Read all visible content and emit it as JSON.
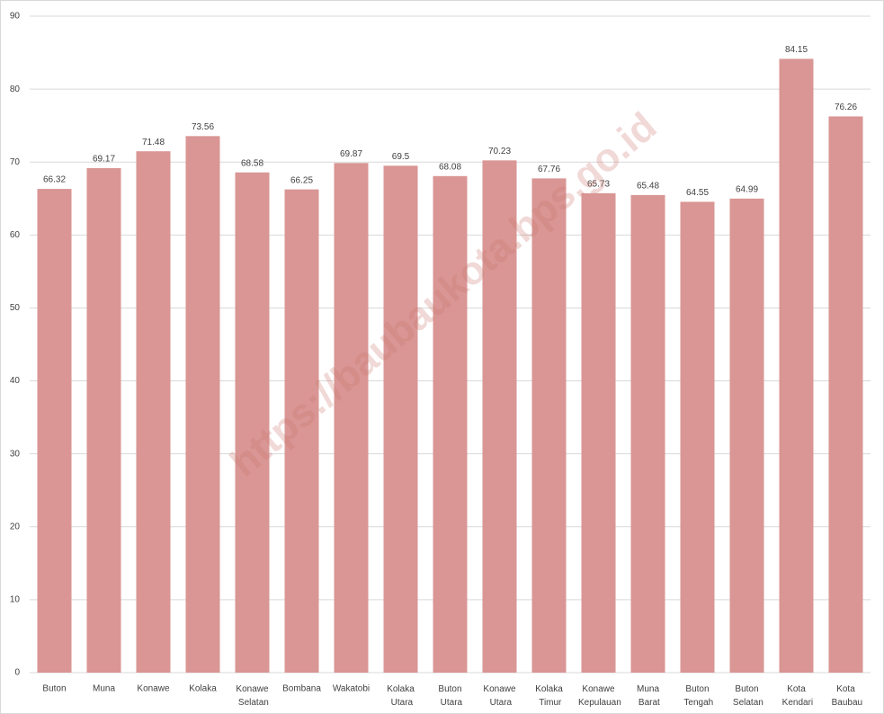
{
  "chart_data": {
    "type": "bar",
    "categories": [
      "Buton",
      "Muna",
      "Konawe",
      "Kolaka",
      "Konawe Selatan",
      "Bombana",
      "Wakatobi",
      "Kolaka Utara",
      "Buton Utara",
      "Konawe Utara",
      "Kolaka Timur",
      "Konawe Kepulauan",
      "Muna Barat",
      "Buton Tengah",
      "Buton Selatan",
      "Kota Kendari",
      "Kota Baubau"
    ],
    "values": [
      66.32,
      69.17,
      71.48,
      73.56,
      68.58,
      66.25,
      69.87,
      69.5,
      68.08,
      70.23,
      67.76,
      65.73,
      65.48,
      64.55,
      64.99,
      84.15,
      76.26
    ],
    "color": "#d99694",
    "ylim": [
      0,
      90
    ],
    "yticks": [
      0,
      10,
      20,
      30,
      40,
      50,
      60,
      70,
      80,
      90
    ],
    "grid": true,
    "watermark": "https://baubaukota.bps.go.id"
  }
}
